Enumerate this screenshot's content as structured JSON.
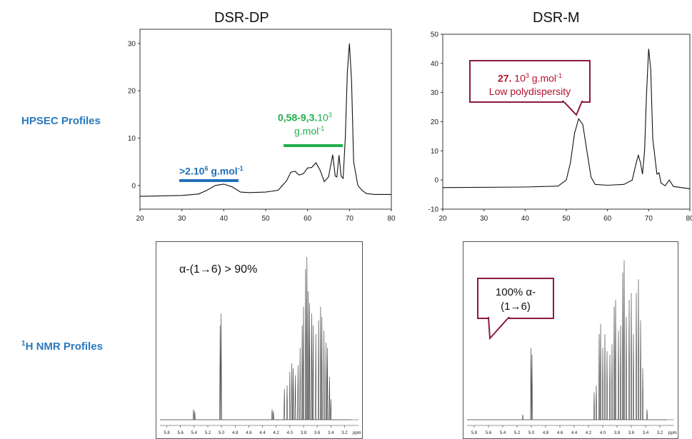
{
  "columns": {
    "left": "DSR-DP",
    "right": "DSR-M"
  },
  "rows": {
    "hpsec": "HPSEC Profiles",
    "nmr_pre": "1",
    "nmr": "H NMR Profiles"
  },
  "annotations": {
    "left_high_mw": {
      "pre": ">2.10",
      "sup": "6",
      "post": " g.mol",
      "sup2": "-1",
      "color": "#1f6fb8"
    },
    "left_low_mw_l1": {
      "bold": "0,58-9,3.",
      "rest": "10",
      "sup": "3"
    },
    "left_low_mw_l2": {
      "text": "g.mol",
      "sup": "-1",
      "color": "#1fb04b"
    },
    "right_callout_l1": {
      "bold": "27.",
      "rest": " 10",
      "sup": "3",
      "post": " g.mol",
      "sup2": "-1"
    },
    "right_callout_l2": "Low polydispersity",
    "nmr_left_label": "α-(1→6) > 90%",
    "nmr_right_callout_l1": "100% α-",
    "nmr_right_callout_l2": "(1→6)",
    "callout_border": "#8a1a44",
    "callout_text": "#b0122e"
  },
  "chart_data": [
    {
      "type": "line",
      "panel": "DSR-DP HPSEC",
      "xlim": [
        20,
        80
      ],
      "ylim": [
        -5,
        33
      ],
      "xticks": [
        20,
        30,
        40,
        50,
        60,
        70,
        80
      ],
      "yticks": [
        0,
        10,
        20,
        30
      ],
      "series": [
        {
          "points": [
            [
              20,
              -2.3
            ],
            [
              30,
              -2.1
            ],
            [
              34,
              -1.8
            ],
            [
              36,
              -1
            ],
            [
              38,
              0
            ],
            [
              40,
              0.3
            ],
            [
              42,
              -0.3
            ],
            [
              44,
              -1.4
            ],
            [
              46,
              -1.5
            ],
            [
              50,
              -1.4
            ],
            [
              53,
              -1
            ],
            [
              55,
              1
            ],
            [
              56,
              2.8
            ],
            [
              57,
              3
            ],
            [
              58,
              2.2
            ],
            [
              59,
              2.5
            ],
            [
              60,
              3.7
            ],
            [
              61,
              3.8
            ],
            [
              62,
              4.8
            ],
            [
              63,
              3.2
            ],
            [
              64,
              0.8
            ],
            [
              65,
              1.8
            ],
            [
              66,
              6.5
            ],
            [
              66.6,
              2
            ],
            [
              67,
              1.8
            ],
            [
              67.5,
              6.4
            ],
            [
              68,
              2
            ],
            [
              68.5,
              1.5
            ],
            [
              69,
              10
            ],
            [
              69.5,
              24
            ],
            [
              70,
              30
            ],
            [
              70.5,
              22
            ],
            [
              71,
              5
            ],
            [
              72,
              0
            ],
            [
              73,
              -1
            ],
            [
              74,
              -1.7
            ],
            [
              76,
              -1.9
            ],
            [
              80,
              -1.9
            ]
          ]
        }
      ]
    },
    {
      "type": "line",
      "panel": "DSR-M HPSEC",
      "xlim": [
        20,
        80
      ],
      "ylim": [
        -10,
        50
      ],
      "xticks": [
        20,
        30,
        40,
        50,
        60,
        70,
        80
      ],
      "yticks": [
        -10,
        0,
        10,
        20,
        30,
        40,
        50
      ],
      "series": [
        {
          "points": [
            [
              20,
              -2.6
            ],
            [
              40,
              -2.4
            ],
            [
              48,
              -2.1
            ],
            [
              50,
              0
            ],
            [
              51,
              6
            ],
            [
              52,
              16
            ],
            [
              53,
              21
            ],
            [
              54,
              19
            ],
            [
              55,
              10
            ],
            [
              56,
              1
            ],
            [
              57,
              -1.5
            ],
            [
              60,
              -1.8
            ],
            [
              64,
              -1.5
            ],
            [
              66,
              0
            ],
            [
              67,
              6
            ],
            [
              67.5,
              8.5
            ],
            [
              68,
              6
            ],
            [
              68.5,
              2
            ],
            [
              69,
              10
            ],
            [
              69.5,
              30
            ],
            [
              70,
              45
            ],
            [
              70.5,
              38
            ],
            [
              71,
              14
            ],
            [
              72,
              2
            ],
            [
              72.5,
              2.5
            ],
            [
              73,
              -1
            ],
            [
              74,
              -2
            ],
            [
              75,
              0
            ],
            [
              76,
              -2.2
            ],
            [
              80,
              -3
            ]
          ]
        }
      ]
    },
    {
      "type": "line",
      "panel": "DSR-DP 1H NMR",
      "xlim": [
        5.9,
        3.1
      ],
      "xticks": [
        5.8,
        5.6,
        5.4,
        5.2,
        5.0,
        4.8,
        4.6,
        4.4,
        4.2,
        4.0,
        3.8,
        3.6,
        3.4,
        3.2
      ],
      "xunit": "ppm",
      "series": [
        {
          "peaks": [
            [
              5.41,
              0.06
            ],
            [
              5.39,
              0.05
            ],
            [
              5.02,
              0.55
            ],
            [
              5.005,
              0.62
            ],
            [
              4.26,
              0.06
            ],
            [
              4.24,
              0.05
            ],
            [
              4.08,
              0.18
            ],
            [
              4.04,
              0.2
            ],
            [
              4.0,
              0.28
            ],
            [
              3.97,
              0.33
            ],
            [
              3.95,
              0.3
            ],
            [
              3.92,
              0.26
            ],
            [
              3.88,
              0.32
            ],
            [
              3.85,
              0.42
            ],
            [
              3.82,
              0.55
            ],
            [
              3.8,
              0.66
            ],
            [
              3.77,
              0.88
            ],
            [
              3.75,
              0.95
            ],
            [
              3.73,
              0.75
            ],
            [
              3.71,
              0.68
            ],
            [
              3.68,
              0.62
            ],
            [
              3.66,
              0.55
            ],
            [
              3.62,
              0.5
            ],
            [
              3.58,
              0.58
            ],
            [
              3.55,
              0.66
            ],
            [
              3.53,
              0.6
            ],
            [
              3.5,
              0.52
            ],
            [
              3.47,
              0.45
            ],
            [
              3.45,
              0.42
            ],
            [
              3.42,
              0.25
            ],
            [
              3.4,
              0.12
            ]
          ]
        }
      ]
    },
    {
      "type": "line",
      "panel": "DSR-M 1H NMR",
      "xlim": [
        5.9,
        3.1
      ],
      "xticks": [
        5.8,
        5.6,
        5.4,
        5.2,
        5.0,
        4.8,
        4.6,
        4.4,
        4.2,
        4.0,
        3.8,
        3.6,
        3.4,
        3.2
      ],
      "xunit": "ppm",
      "series": [
        {
          "peaks": [
            [
              5.12,
              0.03
            ],
            [
              5.005,
              0.42
            ],
            [
              4.99,
              0.38
            ],
            [
              4.12,
              0.16
            ],
            [
              4.09,
              0.2
            ],
            [
              4.05,
              0.5
            ],
            [
              4.03,
              0.56
            ],
            [
              4.0,
              0.42
            ],
            [
              3.97,
              0.5
            ],
            [
              3.94,
              0.4
            ],
            [
              3.9,
              0.38
            ],
            [
              3.87,
              0.44
            ],
            [
              3.84,
              0.66
            ],
            [
              3.82,
              0.7
            ],
            [
              3.78,
              0.52
            ],
            [
              3.75,
              0.55
            ],
            [
              3.72,
              0.86
            ],
            [
              3.7,
              0.93
            ],
            [
              3.67,
              0.6
            ],
            [
              3.63,
              0.7
            ],
            [
              3.6,
              0.74
            ],
            [
              3.57,
              0.5
            ],
            [
              3.53,
              0.74
            ],
            [
              3.5,
              0.82
            ],
            [
              3.47,
              0.58
            ],
            [
              3.44,
              0.3
            ],
            [
              3.38,
              0.06
            ]
          ]
        }
      ]
    }
  ]
}
